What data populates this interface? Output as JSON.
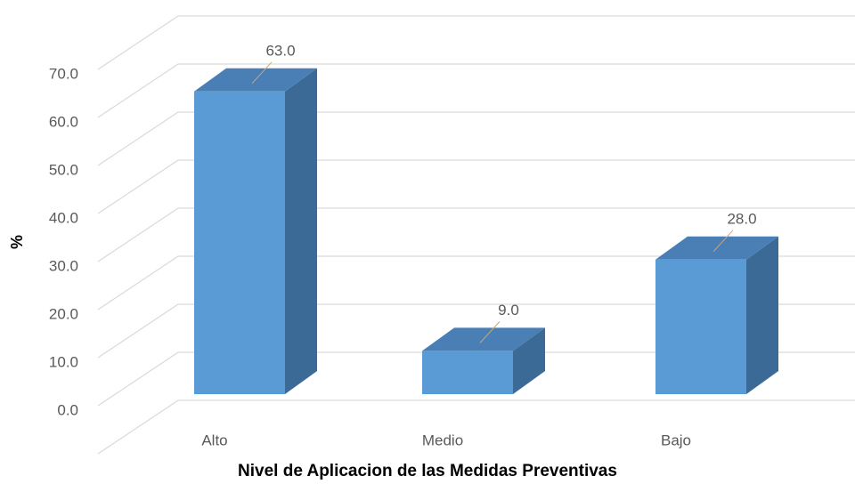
{
  "chart_data": {
    "type": "bar3d",
    "y_label": "%",
    "x_label": "Nivel de Aplicacion de las Medidas Preventivas",
    "categories": [
      "Alto",
      "Medio",
      "Bajo"
    ],
    "values": [
      63,
      9,
      28
    ],
    "value_labels": [
      "63.0",
      "9.0",
      "28.0"
    ],
    "color": "#5b9bd5",
    "ylim": [
      0,
      80
    ],
    "yticks": [
      {
        "value": 0,
        "label": "0.0"
      },
      {
        "value": 10,
        "label": "10.0"
      },
      {
        "value": 20,
        "label": "20.0"
      },
      {
        "value": 30,
        "label": "30.0"
      },
      {
        "value": 40,
        "label": "40.0"
      },
      {
        "value": 50,
        "label": "50.0"
      },
      {
        "value": 60,
        "label": "60.0"
      },
      {
        "value": 70,
        "label": "70.0"
      }
    ],
    "grid": true
  }
}
